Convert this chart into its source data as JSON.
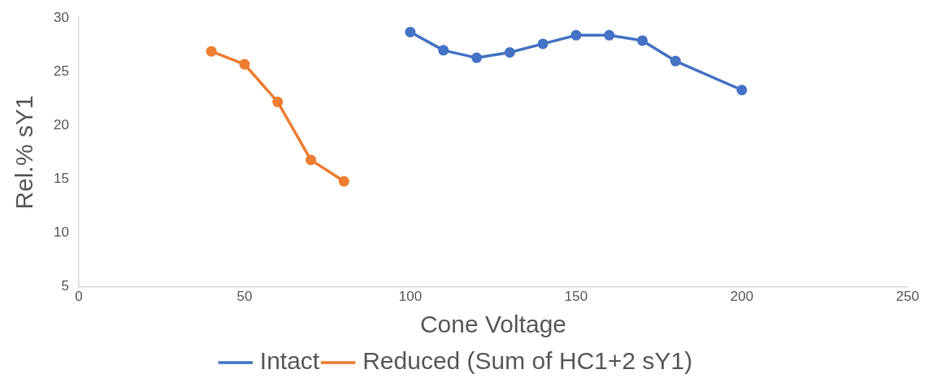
{
  "chart_data": {
    "type": "line",
    "xlabel": "Cone Voltage",
    "ylabel": "Rel.% sY1",
    "xlim": [
      0,
      250
    ],
    "xticks": [
      0,
      50,
      100,
      150,
      200,
      250
    ],
    "ylim": [
      5,
      30
    ],
    "yticks": [
      5,
      10,
      15,
      20,
      25,
      30
    ],
    "grid": false,
    "legend": "bottom",
    "marker": "circle",
    "line_style": "solid",
    "series": [
      {
        "name": "Intact",
        "color": "#4472c4",
        "x": [
          100,
          110,
          120,
          130,
          140,
          150,
          160,
          170,
          180,
          200
        ],
        "values": [
          28.7,
          27.0,
          26.3,
          26.8,
          27.6,
          28.4,
          28.4,
          27.9,
          26.0,
          23.3
        ]
      },
      {
        "name": "Reduced (Sum of HC1+2 sY1)",
        "color": "#ed7d31",
        "x": [
          40,
          50,
          60,
          70,
          80
        ],
        "values": [
          26.9,
          25.7,
          22.2,
          16.8,
          14.8
        ]
      }
    ]
  }
}
